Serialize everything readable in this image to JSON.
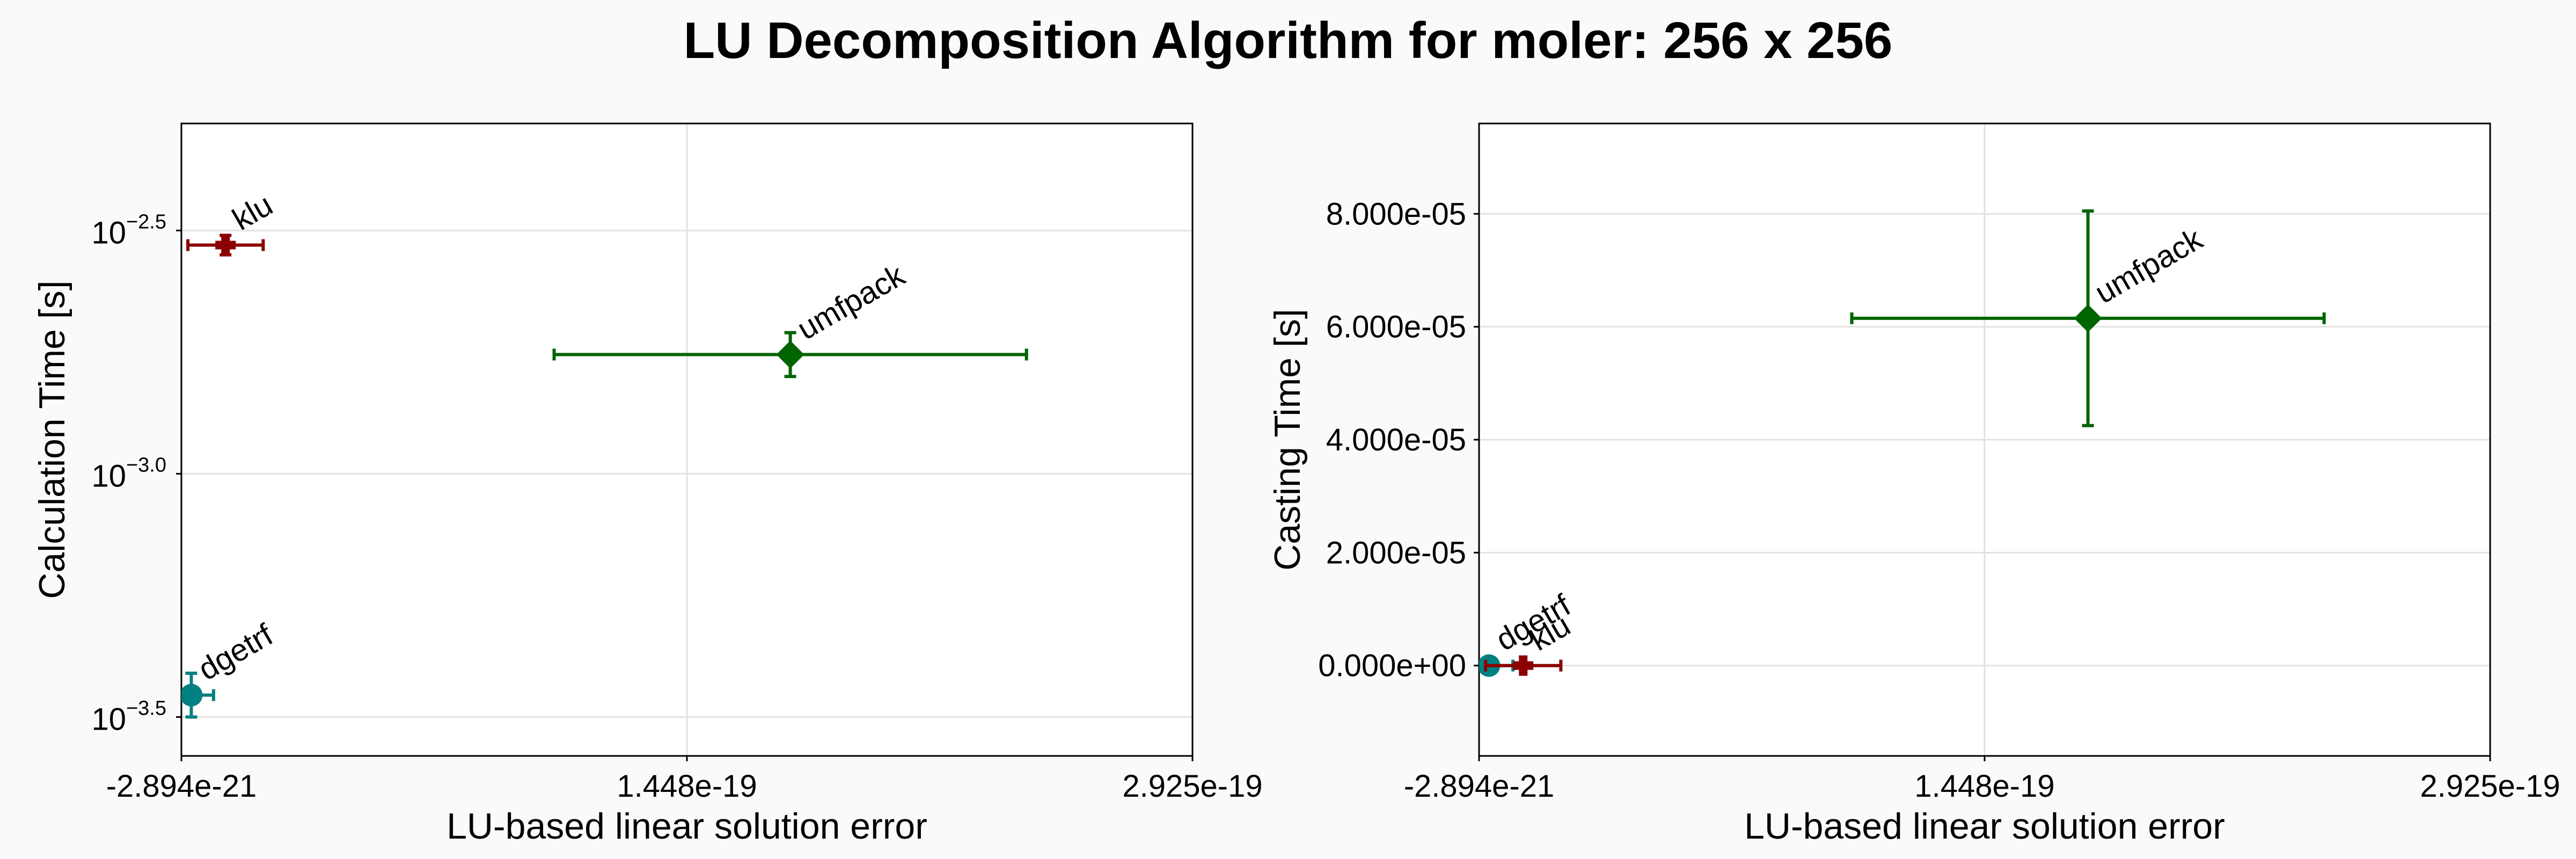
{
  "title": "LU Decomposition Algorithm for moler: 256 x 256",
  "colors": {
    "klu": "#8b0000",
    "umfpack": "#006400",
    "dgetrf": "#008080"
  },
  "chart_data": [
    {
      "type": "scatter",
      "name": "calculation",
      "xlabel": "LU-based linear solution error",
      "ylabel": "Calculation Time [s]",
      "y_scale": "log10",
      "xlim": [
        -2.894e-21,
        2.925e-19
      ],
      "ylim_log10": [
        -3.58,
        -2.28
      ],
      "x_ticks": [
        {
          "value": -2.894e-21,
          "label": "-2.894e-21"
        },
        {
          "value": 1.448e-19,
          "label": "1.448e-19"
        },
        {
          "value": 2.925e-19,
          "label": "2.925e-19"
        }
      ],
      "y_ticks": [
        {
          "value": -2.5,
          "base": "10",
          "exp": "−2.5"
        },
        {
          "value": -3.0,
          "base": "10",
          "exp": "−3.0"
        },
        {
          "value": -3.5,
          "base": "10",
          "exp": "−3.5"
        }
      ],
      "grid": true,
      "points": [
        {
          "label": "klu",
          "marker": "cross",
          "x": 1e-20,
          "x_err": 1.1e-20,
          "log10_y": -2.53,
          "log10_y_err": 0.02
        },
        {
          "label": "umfpack",
          "marker": "diamond",
          "x": 1.75e-19,
          "x_err": 6.9e-20,
          "log10_y": -2.755,
          "log10_y_err": 0.045
        },
        {
          "label": "dgetrf",
          "marker": "circle",
          "x": 0.0,
          "x_err": 6.5e-21,
          "log10_y": -3.455,
          "log10_y_err": 0.045
        }
      ]
    },
    {
      "type": "scatter",
      "name": "casting",
      "xlabel": "LU-based linear solution error",
      "ylabel": "Casting Time [s]",
      "y_scale": "linear",
      "xlim": [
        -2.894e-21,
        2.925e-19
      ],
      "ylim": [
        -1.6e-05,
        9.6e-05
      ],
      "x_ticks": [
        {
          "value": -2.894e-21,
          "label": "-2.894e-21"
        },
        {
          "value": 1.448e-19,
          "label": "1.448e-19"
        },
        {
          "value": 2.925e-19,
          "label": "2.925e-19"
        }
      ],
      "y_ticks": [
        {
          "value": 0.0,
          "label": "0.000e+00"
        },
        {
          "value": 2e-05,
          "label": "2.000e-05"
        },
        {
          "value": 4e-05,
          "label": "4.000e-05"
        },
        {
          "value": 6e-05,
          "label": "6.000e-05"
        },
        {
          "value": 8e-05,
          "label": "8.000e-05"
        }
      ],
      "grid": true,
      "points": [
        {
          "label": "dgetrf",
          "marker": "circle",
          "x": 0.0,
          "x_err": 7e-21,
          "y": 0.0,
          "y_err": 0.0
        },
        {
          "label": "klu",
          "marker": "cross",
          "x": 1e-20,
          "x_err": 1.1e-20,
          "y": 0.0,
          "y_err": 0.0
        },
        {
          "label": "umfpack",
          "marker": "diamond",
          "x": 1.75e-19,
          "x_err": 6.9e-20,
          "y": 6.15e-05,
          "y_err": 1.9e-05
        }
      ]
    }
  ]
}
